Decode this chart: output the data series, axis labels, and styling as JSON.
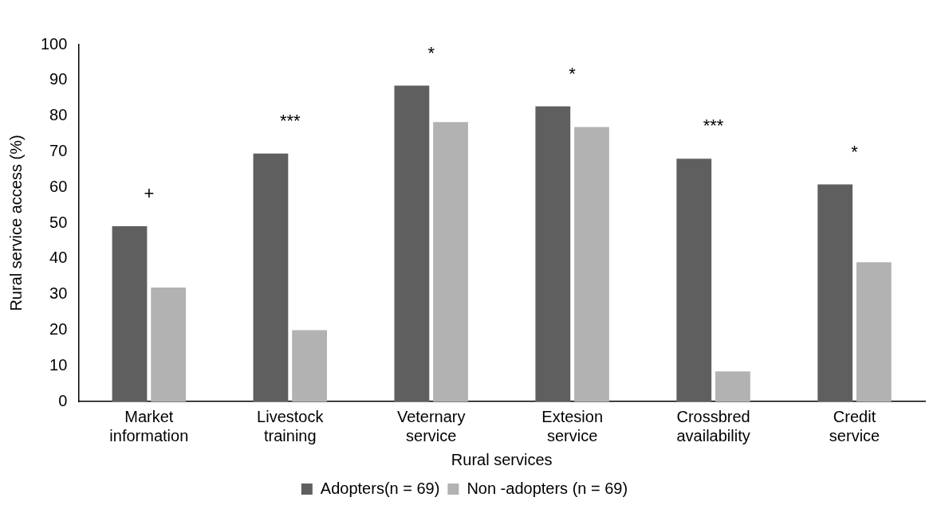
{
  "chart_data": {
    "type": "bar",
    "xlabel": "Rural services",
    "ylabel": "Rural service access (%)",
    "categories": [
      "Market information",
      "Livestock training",
      "Veternary service",
      "Extesion service",
      "Crossbred availability",
      "Credit service"
    ],
    "series": [
      {
        "name": "Adopters(n = 69)",
        "color": "#5f5f5f",
        "values": [
          49.1,
          69.5,
          88.5,
          82.7,
          68.0,
          60.8
        ]
      },
      {
        "name": "Non -adopters (n = 69)",
        "color": "#b2b2b2",
        "values": [
          31.9,
          20.0,
          78.3,
          76.9,
          8.4,
          39.0
        ]
      }
    ],
    "ylim": [
      0,
      100
    ],
    "yticks": [
      0,
      10,
      20,
      30,
      40,
      50,
      60,
      70,
      80,
      90,
      100
    ],
    "grid": false,
    "legend": "bottom",
    "annotations": [
      "+",
      "***",
      "*",
      "*",
      "***",
      "*"
    ]
  }
}
